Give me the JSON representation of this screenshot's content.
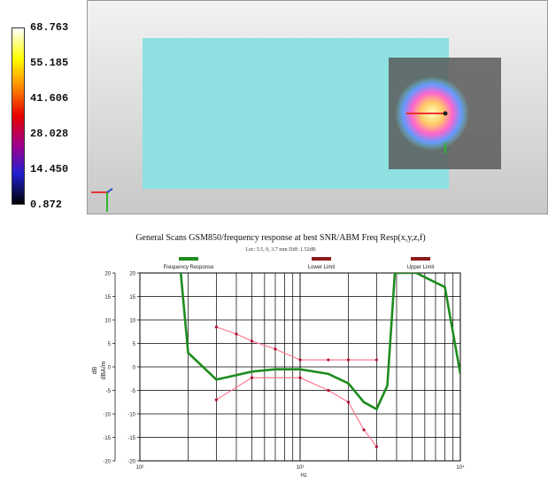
{
  "colorbar": {
    "ticks": [
      "68.763",
      "55.185",
      "41.606",
      "28.028",
      "14.450",
      "0.872"
    ],
    "colors": [
      "#ffffff",
      "#ffff00",
      "#ff8c00",
      "#e60000",
      "#a00090",
      "#2020d0",
      "#000000"
    ]
  },
  "scan_view": {
    "background": "#cfcfcf",
    "phantom_color": "#8fe0e0",
    "region_color": "#5a5a5a",
    "hotspot_colors": [
      "#ffffc0",
      "#ffcc66",
      "#ff66cc",
      "#6699ff",
      "#66cccc"
    ],
    "axis_colors": {
      "x": "#e63333",
      "y": "#2db82d",
      "z": "#3355cc"
    }
  },
  "chart_data": {
    "type": "line",
    "title": "General Scans GSM850/frequency response at best SNR/ABM Freq Resp(x,y,z,f)",
    "subtitle": "Loc: 5.5, 0, 3.7 mm Diff: 1.52dB",
    "xlabel": "Hz",
    "ylabel": "dB",
    "ylabel2": "dBA/m",
    "x_scale": "log",
    "xlim": [
      100,
      10000
    ],
    "ylim": [
      -20,
      20
    ],
    "x_tick_labels": [
      "10²",
      "10³",
      "10⁴"
    ],
    "x_tick_values": [
      100,
      1000,
      10000
    ],
    "y_ticks": [
      -20,
      -15,
      -10,
      -5,
      0,
      5,
      10,
      15,
      20
    ],
    "grid": true,
    "legend_position": "top",
    "series": [
      {
        "name": "Frequency Response",
        "color": "#1e8c1e",
        "x": [
          180,
          200,
          300,
          500,
          700,
          1000,
          1500,
          2000,
          2500,
          3000,
          3500,
          3900,
          5300,
          8000,
          10000
        ],
        "y": [
          20,
          3,
          -2.7,
          -1,
          -0.5,
          -0.5,
          -1.5,
          -3.5,
          -7.5,
          -9,
          -4,
          20,
          20,
          17,
          -1.5
        ]
      },
      {
        "name": "Lower Limit",
        "color": "#ff6f8a",
        "x": [
          300,
          500,
          1000,
          1500,
          2000,
          2500,
          3000
        ],
        "y": [
          -7,
          -2.3,
          -2.3,
          -5,
          -7.5,
          -13.4,
          -17
        ]
      },
      {
        "name": "Upper Limit",
        "color": "#ff6f8a",
        "x": [
          300,
          400,
          500,
          700,
          1000,
          1500,
          2000,
          3000
        ],
        "y": [
          8.5,
          7,
          5.5,
          3.8,
          1.5,
          1.5,
          1.5,
          1.5
        ]
      }
    ],
    "legend": [
      {
        "label": "Frequency Response",
        "color": "#1e8c1e"
      },
      {
        "label": "Lower Limit",
        "color": "#8b1a1a"
      },
      {
        "label": "Upper Limit",
        "color": "#8b1a1a"
      }
    ]
  }
}
